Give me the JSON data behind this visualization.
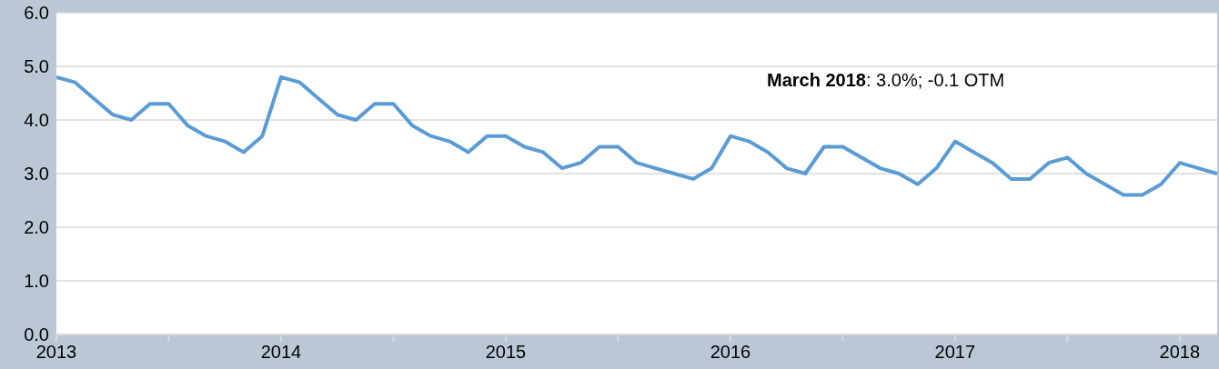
{
  "chart_data": {
    "type": "line",
    "x": [
      "2013-01",
      "2013-02",
      "2013-03",
      "2013-04",
      "2013-05",
      "2013-06",
      "2013-07",
      "2013-08",
      "2013-09",
      "2013-10",
      "2013-11",
      "2013-12",
      "2014-01",
      "2014-02",
      "2014-03",
      "2014-04",
      "2014-05",
      "2014-06",
      "2014-07",
      "2014-08",
      "2014-09",
      "2014-10",
      "2014-11",
      "2014-12",
      "2015-01",
      "2015-02",
      "2015-03",
      "2015-04",
      "2015-05",
      "2015-06",
      "2015-07",
      "2015-08",
      "2015-09",
      "2015-10",
      "2015-11",
      "2015-12",
      "2016-01",
      "2016-02",
      "2016-03",
      "2016-04",
      "2016-05",
      "2016-06",
      "2016-07",
      "2016-08",
      "2016-09",
      "2016-10",
      "2016-11",
      "2016-12",
      "2017-01",
      "2017-02",
      "2017-03",
      "2017-04",
      "2017-05",
      "2017-06",
      "2017-07",
      "2017-08",
      "2017-09",
      "2017-10",
      "2017-11",
      "2017-12",
      "2018-01",
      "2018-02",
      "2018-03"
    ],
    "series": [
      {
        "color": "#5b9bd5",
        "values": [
          4.8,
          4.7,
          4.4,
          4.1,
          4.0,
          4.3,
          4.3,
          3.9,
          3.7,
          3.6,
          3.4,
          3.7,
          4.8,
          4.7,
          4.4,
          4.1,
          4.0,
          4.3,
          4.3,
          3.9,
          3.7,
          3.6,
          3.4,
          3.7,
          3.7,
          3.5,
          3.4,
          3.1,
          3.2,
          3.5,
          3.5,
          3.2,
          3.1,
          3.0,
          2.9,
          3.1,
          3.7,
          3.6,
          3.4,
          3.1,
          3.0,
          3.5,
          3.5,
          3.3,
          3.1,
          3.0,
          2.8,
          3.1,
          3.6,
          3.4,
          3.2,
          2.9,
          2.9,
          3.2,
          3.3,
          3.0,
          2.8,
          2.6,
          2.6,
          2.8,
          3.2,
          3.1,
          3.0
        ]
      }
    ],
    "xlim": [
      "2013-01",
      "2018-03"
    ],
    "xticks": [
      {
        "value": "2013-01",
        "label": "2013"
      },
      {
        "value": "2013-07",
        "label": null
      },
      {
        "value": "2014-01",
        "label": "2014"
      },
      {
        "value": "2014-07",
        "label": null
      },
      {
        "value": "2015-01",
        "label": "2015"
      },
      {
        "value": "2015-07",
        "label": null
      },
      {
        "value": "2016-01",
        "label": "2016"
      },
      {
        "value": "2016-07",
        "label": null
      },
      {
        "value": "2017-01",
        "label": "2017"
      },
      {
        "value": "2017-07",
        "label": null
      },
      {
        "value": "2018-01",
        "label": "2018"
      }
    ],
    "ylim": [
      0,
      6
    ],
    "yticks": [
      {
        "value": 0,
        "label": "0.0"
      },
      {
        "value": 1,
        "label": "1.0"
      },
      {
        "value": 2,
        "label": "2.0"
      },
      {
        "value": 3,
        "label": "3.0"
      },
      {
        "value": 4,
        "label": "4.0"
      },
      {
        "value": 5,
        "label": "5.0"
      },
      {
        "value": 6,
        "label": "6.0"
      }
    ],
    "grid": "y",
    "marker": "none",
    "line_style": "solid",
    "legend": false,
    "annotations": [
      "March 2018: 3.0%; -0.1 OTM"
    ]
  }
}
